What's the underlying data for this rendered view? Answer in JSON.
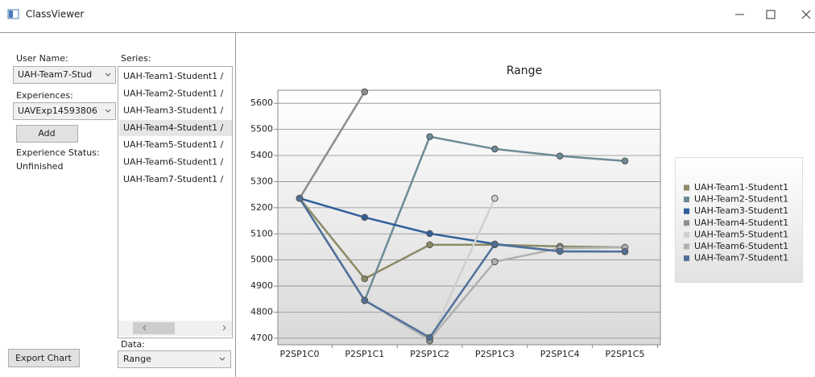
{
  "window": {
    "title": "ClassViewer"
  },
  "sidebar": {
    "user_name_label": "User Name:",
    "user_name": "UAH-Team7-Stud",
    "experiences_label": "Experiences:",
    "experience": "UAVExp14593806",
    "add_button": "Add",
    "status_label": "Experience Status:",
    "status": "Unfinished",
    "series_label": "Series:",
    "series_items": [
      "UAH-Team1-Student1 /",
      "UAH-Team2-Student1 /",
      "UAH-Team3-Student1 /",
      "UAH-Team4-Student1 /",
      "UAH-Team5-Student1 /",
      "UAH-Team6-Student1 /",
      "UAH-Team7-Student1 /"
    ],
    "data_label": "Data:",
    "data_value": "Range",
    "export_button": "Export Chart"
  },
  "chart_data": {
    "type": "line",
    "title": "Range",
    "categories": [
      "P2SP1C0",
      "P2SP1C1",
      "P2SP1C2",
      "P2SP1C3",
      "P2SP1C4",
      "P2SP1C5"
    ],
    "series": [
      {
        "name": "UAH-Team1-Student1",
        "color": "#8c8a65",
        "values": [
          5236,
          4928,
          5058,
          5058,
          5052,
          5048
        ]
      },
      {
        "name": "UAH-Team2-Student1",
        "color": "#6d8b97",
        "values": [
          5236,
          4845,
          5472,
          5425,
          5398,
          5379
        ]
      },
      {
        "name": "UAH-Team3-Student1",
        "color": "#2f5f9a",
        "values": [
          5236,
          5163,
          5101,
          5061,
          5033,
          5032
        ]
      },
      {
        "name": "UAH-Team4-Student1",
        "color": "#8e8e8e",
        "values": [
          5236,
          5644,
          null,
          null,
          null,
          null
        ]
      },
      {
        "name": "UAH-Team5-Student1",
        "color": "#cfcfcf",
        "values": [
          5236,
          4845,
          4690,
          5236,
          null,
          null
        ]
      },
      {
        "name": "UAH-Team6-Student1",
        "color": "#b0b0b0",
        "values": [
          5236,
          4845,
          4695,
          4993,
          5045,
          5048
        ]
      },
      {
        "name": "UAH-Team7-Student1",
        "color": "#50709a",
        "values": [
          5236,
          4845,
          4703,
          5060,
          5033,
          5032
        ]
      }
    ],
    "ylim": [
      4675,
      5650
    ],
    "yticks": [
      4700,
      4800,
      4900,
      5000,
      5100,
      5200,
      5300,
      5400,
      5500,
      5600
    ],
    "grid": true,
    "legend": "right"
  }
}
